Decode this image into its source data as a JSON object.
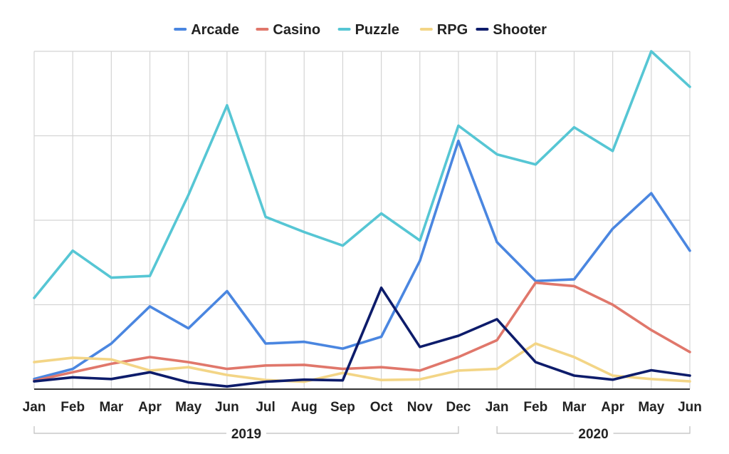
{
  "chart_data": {
    "type": "line",
    "title": "",
    "xlabel": "",
    "ylabel": "",
    "ylim": [
      0,
      100
    ],
    "grid": true,
    "legend_position": "top",
    "categories": [
      "Jan",
      "Feb",
      "Mar",
      "Apr",
      "May",
      "Jun",
      "Jul",
      "Aug",
      "Sep",
      "Oct",
      "Nov",
      "Dec",
      "Jan",
      "Feb",
      "Mar",
      "Apr",
      "May",
      "Jun"
    ],
    "groups": [
      {
        "label": "2019",
        "start": 0,
        "end": 11
      },
      {
        "label": "2020",
        "start": 12,
        "end": 17
      }
    ],
    "series": [
      {
        "name": "Arcade",
        "color": "#4a86e0",
        "values": [
          3,
          6,
          13.5,
          24.5,
          18,
          29,
          13.5,
          14,
          12,
          15.5,
          38,
          73.5,
          43.5,
          32,
          32.5,
          47.5,
          58,
          41
        ]
      },
      {
        "name": "Casino",
        "color": "#e0776b",
        "values": [
          2.5,
          5,
          7.5,
          9.5,
          8,
          6,
          7,
          7.2,
          6,
          6.5,
          5.5,
          9.5,
          14.5,
          31.5,
          30.5,
          25,
          17.5,
          11
        ]
      },
      {
        "name": "Puzzle",
        "color": "#56c6d4",
        "values": [
          27,
          41,
          33,
          33.5,
          57.5,
          84,
          51,
          46.5,
          42.5,
          52,
          44,
          78,
          69.5,
          66.5,
          77.5,
          70.5,
          100,
          89.5
        ]
      },
      {
        "name": "RPG",
        "color": "#f3d586",
        "values": [
          8,
          9.3,
          8.8,
          5.5,
          6.5,
          4.2,
          2.7,
          2.2,
          4.8,
          2.7,
          2.9,
          5.5,
          6,
          13.5,
          9.5,
          4,
          3,
          2.3
        ]
      },
      {
        "name": "Shooter",
        "color": "#0d1c6b",
        "values": [
          2.3,
          3.5,
          3,
          5,
          2,
          0.8,
          2.2,
          2.8,
          2.6,
          30,
          12.5,
          15.8,
          20.7,
          8,
          4,
          2.8,
          5.6,
          4
        ]
      }
    ]
  }
}
